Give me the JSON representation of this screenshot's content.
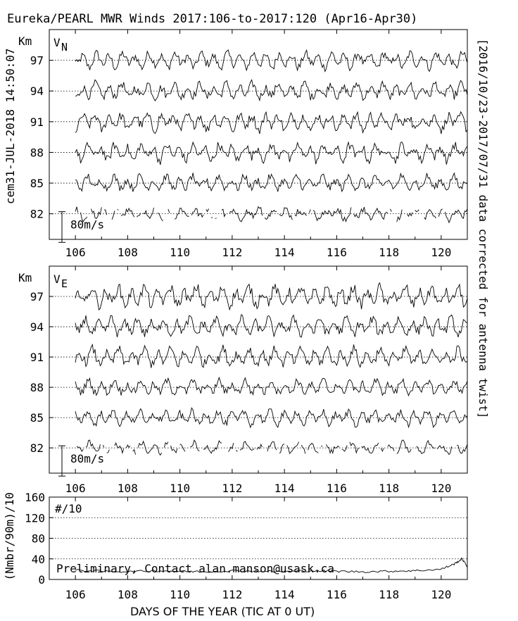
{
  "title": "Eureka/PEARL MWR Winds 2017:106-to-2017:120 (Apr16-Apr30)",
  "left_vertical_label": "cem31-JUL-2018 14:50:07",
  "right_vertical_label": "[2016/10/23-2017/07/31 data corrected for antenna twist]",
  "x_axis_label": "DAYS OF THE YEAR (TIC AT 0 UT)",
  "chart_data": [
    {
      "type": "line",
      "panel": "vn",
      "label_main": "V",
      "label_sub": "N",
      "y_unit": "Km",
      "altitudes_km": [
        97,
        94,
        91,
        88,
        85,
        82
      ],
      "scale_label": "80m/s",
      "x_ticks": [
        106,
        108,
        110,
        112,
        114,
        116,
        118,
        120
      ],
      "xlim": [
        105,
        121
      ],
      "ylim_km": [
        79.5,
        100
      ],
      "grid": "dotted at altitude levels",
      "series": [
        {
          "altitude": 97,
          "amplitude_ms": 20,
          "values": []
        },
        {
          "altitude": 94,
          "amplitude_ms": 20,
          "values": []
        },
        {
          "altitude": 91,
          "amplitude_ms": 22,
          "values": []
        },
        {
          "altitude": 88,
          "amplitude_ms": 22,
          "values": []
        },
        {
          "altitude": 85,
          "amplitude_ms": 18,
          "values": []
        },
        {
          "altitude": 82,
          "amplitude_ms": 15,
          "values": []
        }
      ]
    },
    {
      "type": "line",
      "panel": "ve",
      "label_main": "V",
      "label_sub": "E",
      "y_unit": "Km",
      "altitudes_km": [
        97,
        94,
        91,
        88,
        85,
        82
      ],
      "scale_label": "80m/s",
      "x_ticks": [
        106,
        108,
        110,
        112,
        114,
        116,
        118,
        120
      ],
      "xlim": [
        105,
        121
      ],
      "ylim_km": [
        79.5,
        100
      ],
      "grid": "dotted at altitude levels",
      "series": [
        {
          "altitude": 97,
          "amplitude_ms": 25,
          "values": []
        },
        {
          "altitude": 94,
          "amplitude_ms": 22,
          "values": []
        },
        {
          "altitude": 91,
          "amplitude_ms": 22,
          "values": []
        },
        {
          "altitude": 88,
          "amplitude_ms": 18,
          "values": []
        },
        {
          "altitude": 85,
          "amplitude_ms": 18,
          "values": []
        },
        {
          "altitude": 82,
          "amplitude_ms": 14,
          "values": []
        }
      ]
    },
    {
      "type": "line",
      "panel": "count",
      "label": "#/10",
      "ylabel": "(Nmbr/90m)/10",
      "y_ticks": [
        0,
        40,
        80,
        120,
        160
      ],
      "ylim": [
        0,
        160
      ],
      "xlim": [
        105,
        121
      ],
      "x_ticks": [
        106,
        108,
        110,
        112,
        114,
        116,
        118,
        120
      ],
      "grid": "dotted at 40, 80, 120",
      "note": "Preliminary, Contact alan.manson@usask.ca",
      "series": [
        {
          "name": "",
          "x": [
            106.0,
            107.0,
            108.0,
            109.0,
            110.0,
            111.0,
            112.0,
            113.0,
            114.0,
            115.0,
            116.0,
            117.0,
            118.0,
            119.0,
            120.0,
            120.5,
            120.8,
            121.0
          ],
          "values": [
            18,
            16,
            15,
            17,
            16,
            15,
            17,
            16,
            15,
            17,
            16,
            15,
            16,
            17,
            20,
            30,
            40,
            25
          ]
        }
      ]
    }
  ]
}
